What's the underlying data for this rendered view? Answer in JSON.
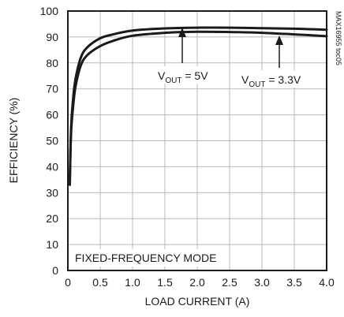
{
  "chart_data": {
    "type": "line",
    "title": "",
    "xlabel": "LOAD CURRENT (A)",
    "ylabel": "EFFICIENCY (%)",
    "xlim": [
      0,
      4.0
    ],
    "ylim": [
      0,
      100
    ],
    "x_ticks": [
      "0",
      "0.5",
      "1.0",
      "1.5",
      "2.0",
      "2.5",
      "3.0",
      "3.5",
      "4.0"
    ],
    "y_ticks": [
      "0",
      "10",
      "20",
      "30",
      "40",
      "50",
      "60",
      "70",
      "80",
      "90",
      "100"
    ],
    "grid": true,
    "series": [
      {
        "name": "VOUT = 5V",
        "x": [
          0.03,
          0.05,
          0.08,
          0.12,
          0.2,
          0.3,
          0.5,
          0.7,
          1.0,
          1.5,
          2.0,
          2.5,
          3.0,
          3.5,
          4.0
        ],
        "y": [
          33,
          55,
          66,
          74,
          82,
          86,
          89.5,
          91,
          92.5,
          93.3,
          93.6,
          93.6,
          93.4,
          93.2,
          92.8
        ]
      },
      {
        "name": "VOUT = 3.3V",
        "x": [
          0.03,
          0.05,
          0.08,
          0.12,
          0.2,
          0.3,
          0.5,
          0.7,
          1.0,
          1.5,
          2.0,
          2.5,
          3.0,
          3.5,
          4.0
        ],
        "y": [
          35,
          53,
          63,
          71,
          79,
          83,
          86.5,
          88.5,
          90.5,
          91.6,
          92,
          91.9,
          91.6,
          91,
          90.3
        ]
      }
    ],
    "annotations": [
      {
        "main": "V",
        "sub": "OUT",
        "rest": " = 5V",
        "target": "VOUT = 5V"
      },
      {
        "main": "V",
        "sub": "OUT",
        "rest": " = 3.3V",
        "target": "VOUT = 3.3V"
      },
      {
        "text": "FIXED-FREQUENCY MODE"
      },
      {
        "text": "MAX16955 toc05"
      }
    ]
  }
}
